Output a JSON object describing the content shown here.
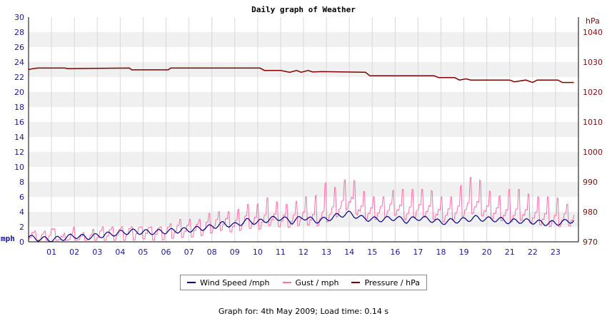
{
  "chart_data": {
    "type": "line",
    "title": "Daily graph of Weather",
    "left_axis": {
      "unit": "mph",
      "ylim": [
        0,
        30
      ],
      "ticks": [
        "0",
        "2",
        "4",
        "6",
        "8",
        "10",
        "12",
        "14",
        "16",
        "18",
        "20",
        "22",
        "24",
        "26",
        "28",
        "30"
      ]
    },
    "right_axis": {
      "unit": "hPa",
      "ylim": [
        970,
        1045
      ],
      "ticks": [
        "970",
        "980",
        "990",
        "1000",
        "1010",
        "1020",
        "1030",
        "1040"
      ]
    },
    "x_ticks": [
      "01",
      "02",
      "03",
      "04",
      "05",
      "06",
      "07",
      "08",
      "09",
      "10",
      "11",
      "12",
      "13",
      "14",
      "15",
      "16",
      "17",
      "18",
      "19",
      "20",
      "21",
      "22",
      "23"
    ],
    "xlim": [
      0,
      24
    ],
    "grid": true,
    "legend_position": "bottom",
    "series": [
      {
        "name": "Wind Speed /mph",
        "axis": "left",
        "color": "#000080",
        "x": [
          0,
          0.5,
          1,
          1.5,
          2,
          2.5,
          3,
          3.5,
          4,
          4.5,
          5,
          5.5,
          6,
          6.5,
          7,
          7.5,
          8,
          8.5,
          9,
          9.5,
          10,
          10.5,
          11,
          11.5,
          12,
          12.5,
          13,
          13.5,
          14,
          14.5,
          15,
          15.5,
          16,
          16.5,
          17,
          17.5,
          18,
          18.5,
          19,
          19.5,
          20,
          20.5,
          21,
          21.5,
          22,
          22.5,
          23,
          23.5,
          23.8
        ],
        "values": [
          0.6,
          0.4,
          0.3,
          0.5,
          0.8,
          0.6,
          0.8,
          1.0,
          1.2,
          1.4,
          1.3,
          1.3,
          1.4,
          1.5,
          1.6,
          1.8,
          2.0,
          2.4,
          2.2,
          2.8,
          2.6,
          3.0,
          3.2,
          2.7,
          3.3,
          2.8,
          3.0,
          3.5,
          3.8,
          3.2,
          3.0,
          3.0,
          3.2,
          2.8,
          3.2,
          3.0,
          2.6,
          2.8,
          2.9,
          3.2,
          3.0,
          3.0,
          2.7,
          2.8,
          2.7,
          2.5,
          2.5,
          2.7,
          2.9
        ]
      },
      {
        "name": "Gust / mph",
        "axis": "left",
        "color": "#ff6ea8",
        "x": [
          0,
          0.5,
          1,
          1.5,
          2,
          2.5,
          3,
          3.5,
          4,
          4.5,
          5,
          5.5,
          6,
          6.5,
          7,
          7.5,
          8,
          8.5,
          9,
          9.5,
          10,
          10.5,
          11,
          11.5,
          12,
          12.5,
          13,
          13.5,
          14,
          14.5,
          15,
          15.5,
          16,
          16.5,
          17,
          17.5,
          18,
          18.5,
          19,
          19.5,
          20,
          20.5,
          21,
          21.5,
          22,
          22.5,
          23,
          23.5,
          23.8
        ],
        "values": [
          1.5,
          0.8,
          1.8,
          0.6,
          1.2,
          0.5,
          1.4,
          1.6,
          1.7,
          1.8,
          2.0,
          1.8,
          1.9,
          2.2,
          2.2,
          2.4,
          2.8,
          3.2,
          2.8,
          3.5,
          3.2,
          3.8,
          3.6,
          3.5,
          4.0,
          3.6,
          4.2,
          5.0,
          6.2,
          4.8,
          4.5,
          4.8,
          5.2,
          4.5,
          5.0,
          4.8,
          4.2,
          4.5,
          5.0,
          5.5,
          4.8,
          4.5,
          4.2,
          4.5,
          4.0,
          3.8,
          3.5,
          3.8,
          3.6
        ],
        "max_values": [
          2,
          1,
          2,
          1,
          2,
          1,
          2,
          2,
          2,
          2,
          2,
          2,
          2,
          3,
          3,
          3,
          4,
          4,
          4,
          5,
          5,
          6,
          5,
          5,
          6,
          6,
          8,
          7,
          9,
          7,
          6,
          6,
          7,
          7,
          7,
          7,
          6,
          6,
          8,
          9,
          7,
          6,
          7,
          7,
          6,
          6,
          6,
          5,
          5
        ]
      },
      {
        "name": "Pressure / hPa",
        "axis": "right",
        "color": "#7f0000",
        "x": [
          0,
          0.2,
          0.4,
          1.6,
          1.7,
          4.4,
          4.5,
          6.1,
          6.2,
          10.1,
          10.3,
          11.0,
          11.4,
          11.7,
          11.9,
          12.2,
          12.4,
          12.8,
          14.7,
          14.9,
          17.7,
          17.9,
          18.6,
          18.8,
          19.1,
          19.3,
          19.5,
          21.0,
          21.2,
          21.7,
          22.0,
          22.2,
          23.1,
          23.3,
          23.8
        ],
        "values": [
          1027.5,
          1027.8,
          1028.0,
          1028.0,
          1027.8,
          1028.0,
          1027.4,
          1027.4,
          1028.0,
          1028.0,
          1027.2,
          1027.2,
          1026.6,
          1027.2,
          1026.6,
          1027.2,
          1026.7,
          1026.8,
          1026.6,
          1025.4,
          1025.4,
          1024.8,
          1024.8,
          1024.0,
          1024.4,
          1024.0,
          1024.0,
          1024.0,
          1023.4,
          1024.0,
          1023.2,
          1024.0,
          1024.0,
          1023.2,
          1023.2
        ]
      }
    ]
  },
  "legend": {
    "wind_label": "Wind Speed /mph",
    "gust_label": "Gust / mph",
    "pressure_label": "Pressure / hPa"
  },
  "footer": {
    "text": "Graph for: 4th May 2009; Load time: 0.14 s"
  }
}
